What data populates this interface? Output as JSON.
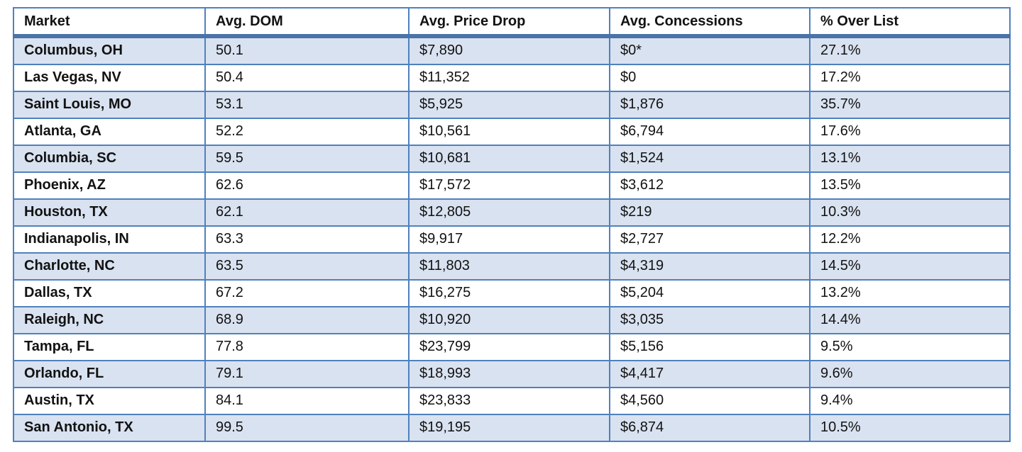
{
  "theme": {
    "border_blue": "#4f81bd",
    "header_rule_blue": "#4a73a8",
    "row_shade_blue": "#d9e2f0",
    "row_white": "#ffffff",
    "text_color": "#121212"
  },
  "chart_data": {
    "type": "table",
    "title": "",
    "columns": [
      "Market",
      "Avg. DOM",
      "Avg. Price Drop",
      "Avg. Concessions",
      "% Over List"
    ],
    "rows": [
      [
        "Columbus, OH",
        "50.1",
        "$7,890",
        "$0*",
        "27.1%"
      ],
      [
        "Las Vegas, NV",
        "50.4",
        "$11,352",
        "$0",
        "17.2%"
      ],
      [
        "Saint Louis, MO",
        "53.1",
        "$5,925",
        "$1,876",
        "35.7%"
      ],
      [
        "Atlanta, GA",
        "52.2",
        "$10,561",
        "$6,794",
        "17.6%"
      ],
      [
        "Columbia, SC",
        "59.5",
        "$10,681",
        "$1,524",
        "13.1%"
      ],
      [
        "Phoenix, AZ",
        "62.6",
        "$17,572",
        "$3,612",
        "13.5%"
      ],
      [
        "Houston, TX",
        "62.1",
        "$12,805",
        "$219",
        "10.3%"
      ],
      [
        "Indianapolis, IN",
        "63.3",
        "$9,917",
        "$2,727",
        "12.2%"
      ],
      [
        "Charlotte, NC",
        "63.5",
        "$11,803",
        "$4,319",
        "14.5%"
      ],
      [
        "Dallas, TX",
        "67.2",
        "$16,275",
        "$5,204",
        "13.2%"
      ],
      [
        "Raleigh, NC",
        "68.9",
        "$10,920",
        "$3,035",
        "14.4%"
      ],
      [
        "Tampa, FL",
        "77.8",
        "$23,799",
        "$5,156",
        "9.5%"
      ],
      [
        "Orlando, FL",
        "79.1",
        "$18,993",
        "$4,417",
        "9.6%"
      ],
      [
        "Austin, TX",
        "84.1",
        "$23,833",
        "$4,560",
        "9.4%"
      ],
      [
        "San Antonio, TX",
        "99.5",
        "$19,195",
        "$6,874",
        "10.5%"
      ]
    ],
    "layout": {
      "header_background": "white",
      "banding": "odd rows shaded light blue, even rows white",
      "first_column_bold": true
    }
  }
}
